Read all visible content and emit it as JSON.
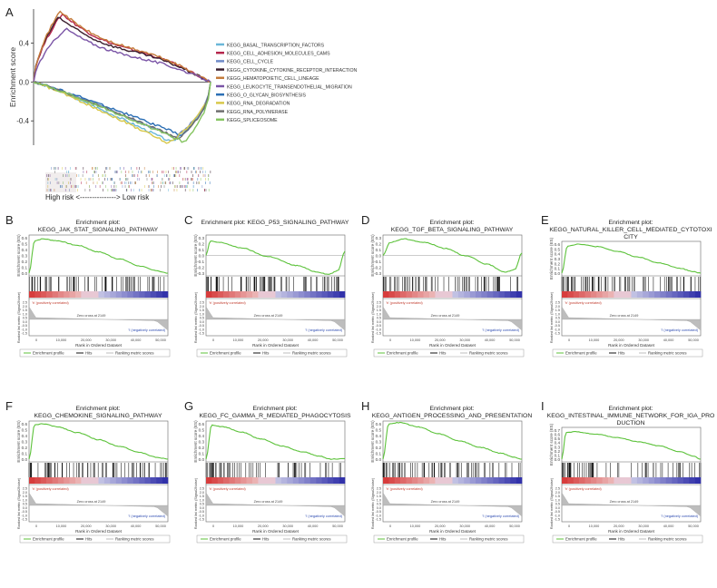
{
  "panel_letters": [
    "A",
    "B",
    "C",
    "D",
    "E",
    "F",
    "G",
    "H",
    "I"
  ],
  "panel_a": {
    "ylabel": "Enrichment score",
    "yticks": [
      "0.4",
      "0.0",
      "-0.4"
    ],
    "risk_label": "High risk <---------------> Low risk",
    "legend": [
      {
        "name": "KEGG_BASAL_TRANSCRIPTION_FACTORS",
        "color": "#6bb7d8"
      },
      {
        "name": "KEGG_CELL_ADHESION_MOLECULES_CAMS",
        "color": "#b5264c"
      },
      {
        "name": "KEGG_CELL_CYCLE",
        "color": "#6f8bc8"
      },
      {
        "name": "KEGG_CYTOKINE_CYTOKINE_RECEPTOR_INTERACTION",
        "color": "#3a1e2e"
      },
      {
        "name": "KEGG_HEMATOPOIETIC_CELL_LINEAGE",
        "color": "#c47a3a"
      },
      {
        "name": "KEGG_LEUKOCYTE_TRANSENDOTHELIAL_MIGRATION",
        "color": "#7a54a6"
      },
      {
        "name": "KEGG_O_GLYCAN_BIOSYNTHESIS",
        "color": "#2c6fb5"
      },
      {
        "name": "KEGG_RNA_DEGRADATION",
        "color": "#d8c84a"
      },
      {
        "name": "KEGG_RNA_POLYMERASE",
        "color": "#6e6e6e"
      },
      {
        "name": "KEGG_SPLICEOSOME",
        "color": "#85c460"
      }
    ]
  },
  "gsea_common": {
    "ylabel_top": "Enrichment score (ES)",
    "ylabel_bottom": "Ranked list metric (Signal2Noise)",
    "xlabel": "Rank in Ordered Dataset",
    "pos_corr": "'h' (positively correlated)",
    "neg_corr": "'l' (negatively correlated)",
    "zero_cross": "Zero cross at 2149",
    "xticks": [
      "0",
      "10,000",
      "20,000",
      "30,000",
      "40,000",
      "50,000"
    ],
    "legend": [
      "Enrichment profile",
      "Hits",
      "Ranking metric scores"
    ]
  },
  "panels": [
    {
      "letter": "B",
      "title1": "Enrichment plot:",
      "title2": "KEGG_JAK_STAT_SIGNALING_PATHWAY",
      "yticks": [
        "0.6",
        "0.5",
        "0.4",
        "0.3",
        "0.2",
        "0.1",
        "0.0"
      ]
    },
    {
      "letter": "C",
      "title1": "Enrichment plot: KEGG_P53_SIGNALING_PATHWAY",
      "title2": "",
      "yticks": [
        "0.3",
        "0.2",
        "0.1",
        "0.0",
        "-0.1",
        "-0.2",
        "-0.3"
      ]
    },
    {
      "letter": "D",
      "title1": "Enrichment plot:",
      "title2": "KEGG_TGF_BETA_SIGNALING_PATHWAY",
      "yticks": [
        "0.3",
        "0.2",
        "0.1",
        "0.0",
        "-0.1",
        "-0.2",
        "-0.3"
      ]
    },
    {
      "letter": "E",
      "title1": "Enrichment plot:",
      "title2": "KEGG_NATURAL_KILLER_CELL_MEDIATED_CYTOTOXI",
      "title3": "CITY",
      "yticks": [
        "0.6",
        "0.5",
        "0.4",
        "0.3",
        "0.2",
        "0.1",
        "0.0"
      ]
    },
    {
      "letter": "F",
      "title1": "Enrichment plot:",
      "title2": "KEGG_CHEMOKINE_SIGNALING_PATHWAY",
      "yticks": [
        "0.6",
        "0.5",
        "0.4",
        "0.3",
        "0.2",
        "0.1",
        "0.0"
      ]
    },
    {
      "letter": "G",
      "title1": "Enrichment plot:",
      "title2": "KEGG_FC_GAMMA_R_MEDIATED_PHAGOCYTOSIS",
      "yticks": [
        "0.6",
        "0.5",
        "0.4",
        "0.3",
        "0.2",
        "0.1",
        "0.0"
      ]
    },
    {
      "letter": "H",
      "title1": "Enrichment plot:",
      "title2": "KEGG_ANTIGEN_PROCESSING_AND_PRESENTATION",
      "yticks": [
        "0.6",
        "0.5",
        "0.4",
        "0.3",
        "0.2",
        "0.1",
        "0.0"
      ]
    },
    {
      "letter": "I",
      "title1": "Enrichment plot:",
      "title2": "KEGG_INTESTINAL_IMMUNE_NETWORK_FOR_IGA_PRO",
      "title3": "DUCTION",
      "yticks": [
        "0.7",
        "0.6",
        "0.5",
        "0.4",
        "0.3",
        "0.2",
        "0.1",
        "0.0"
      ]
    }
  ],
  "chart_data": [
    {
      "type": "line",
      "panel": "A",
      "ylabel": "Enrichment score",
      "ylim": [
        -0.65,
        0.75
      ],
      "series": [
        {
          "name": "KEGG_BASAL_TRANSCRIPTION_FACTORS",
          "shape": "neg",
          "peak": -0.62,
          "at": 0.78
        },
        {
          "name": "KEGG_CELL_ADHESION_MOLECULES_CAMS",
          "shape": "pos",
          "peak": 0.7,
          "at": 0.16
        },
        {
          "name": "KEGG_CELL_CYCLE",
          "shape": "neg",
          "peak": -0.57,
          "at": 0.8
        },
        {
          "name": "KEGG_CYTOKINE_CYTOKINE_RECEPTOR_INTERACTION",
          "shape": "pos",
          "peak": 0.67,
          "at": 0.14
        },
        {
          "name": "KEGG_HEMATOPOIETIC_CELL_LINEAGE",
          "shape": "pos",
          "peak": 0.73,
          "at": 0.15
        },
        {
          "name": "KEGG_LEUKOCYTE_TRANSENDOTHELIAL_MIGRATION",
          "shape": "pos",
          "peak": 0.55,
          "at": 0.18
        },
        {
          "name": "KEGG_O_GLYCAN_BIOSYNTHESIS",
          "shape": "neg",
          "peak": -0.55,
          "at": 0.84
        },
        {
          "name": "KEGG_RNA_DEGRADATION",
          "shape": "neg",
          "peak": -0.63,
          "at": 0.76
        },
        {
          "name": "KEGG_RNA_POLYMERASE",
          "shape": "neg",
          "peak": -0.58,
          "at": 0.82
        },
        {
          "name": "KEGG_SPLICEOSOME",
          "shape": "neg",
          "peak": -0.62,
          "at": 0.85
        }
      ]
    },
    {
      "type": "line",
      "panel": "B",
      "series": [
        {
          "name": "Enrichment profile",
          "x": [
            0,
            0.04,
            0.1,
            0.2,
            0.35,
            0.5,
            0.65,
            0.8,
            0.9,
            1
          ],
          "y": [
            0.0,
            0.55,
            0.58,
            0.55,
            0.47,
            0.36,
            0.24,
            0.12,
            0.05,
            0.0
          ]
        }
      ]
    },
    {
      "type": "line",
      "panel": "C",
      "series": [
        {
          "name": "Enrichment profile",
          "x": [
            0,
            0.03,
            0.1,
            0.25,
            0.45,
            0.65,
            0.8,
            0.88,
            0.95,
            1
          ],
          "y": [
            0.0,
            0.24,
            0.22,
            0.13,
            -0.02,
            -0.17,
            -0.28,
            -0.32,
            -0.26,
            0.07
          ]
        }
      ]
    },
    {
      "type": "line",
      "panel": "D",
      "series": [
        {
          "name": "Enrichment profile",
          "x": [
            0,
            0.05,
            0.15,
            0.3,
            0.45,
            0.6,
            0.75,
            0.88,
            0.95,
            1
          ],
          "y": [
            0.0,
            0.22,
            0.28,
            0.22,
            0.12,
            -0.01,
            -0.15,
            -0.28,
            -0.24,
            0.04
          ]
        }
      ]
    },
    {
      "type": "line",
      "panel": "E",
      "series": [
        {
          "name": "Enrichment profile",
          "x": [
            0,
            0.04,
            0.12,
            0.25,
            0.4,
            0.55,
            0.7,
            0.85,
            0.95,
            1
          ],
          "y": [
            0.0,
            0.56,
            0.6,
            0.55,
            0.45,
            0.33,
            0.21,
            0.1,
            0.03,
            0.0
          ]
        }
      ]
    },
    {
      "type": "line",
      "panel": "F",
      "series": [
        {
          "name": "Enrichment profile",
          "x": [
            0,
            0.04,
            0.1,
            0.2,
            0.35,
            0.5,
            0.65,
            0.8,
            0.92,
            1
          ],
          "y": [
            0.0,
            0.58,
            0.6,
            0.55,
            0.45,
            0.33,
            0.22,
            0.11,
            0.03,
            0.0
          ]
        }
      ]
    },
    {
      "type": "line",
      "panel": "G",
      "series": [
        {
          "name": "Enrichment profile",
          "x": [
            0,
            0.04,
            0.12,
            0.25,
            0.4,
            0.55,
            0.7,
            0.82,
            0.9,
            1
          ],
          "y": [
            0.0,
            0.58,
            0.55,
            0.46,
            0.34,
            0.22,
            0.12,
            0.05,
            0.0,
            0.01
          ]
        }
      ]
    },
    {
      "type": "line",
      "panel": "H",
      "series": [
        {
          "name": "Enrichment profile",
          "x": [
            0,
            0.04,
            0.12,
            0.25,
            0.4,
            0.55,
            0.7,
            0.85,
            0.95,
            1
          ],
          "y": [
            0.0,
            0.6,
            0.62,
            0.55,
            0.43,
            0.31,
            0.2,
            0.1,
            0.03,
            0.0
          ]
        }
      ]
    },
    {
      "type": "line",
      "panel": "I",
      "series": [
        {
          "name": "Enrichment profile",
          "x": [
            0,
            0.03,
            0.1,
            0.25,
            0.4,
            0.55,
            0.7,
            0.85,
            0.95,
            1
          ],
          "y": [
            0.0,
            0.64,
            0.66,
            0.6,
            0.52,
            0.42,
            0.32,
            0.18,
            0.07,
            0.0
          ]
        }
      ]
    }
  ]
}
